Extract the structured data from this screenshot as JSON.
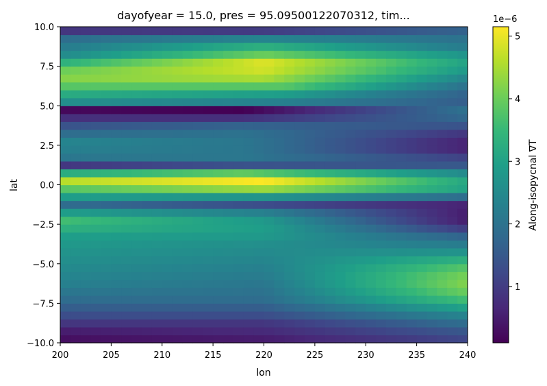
{
  "chart_data": {
    "type": "heatmap",
    "title": "dayofyear = 15.0, pres = 95.09500122070312, tim...",
    "xlabel": "lon",
    "ylabel": "lat",
    "xlim": [
      200,
      240
    ],
    "ylim": [
      -10,
      10
    ],
    "x_ticks": [
      "200",
      "205",
      "210",
      "215",
      "220",
      "225",
      "230",
      "235",
      "240"
    ],
    "y_ticks": [
      "−10.0",
      "−7.5",
      "−5.0",
      "−2.5",
      "0.0",
      "2.5",
      "5.0",
      "7.5",
      "10.0"
    ],
    "x_tick_values": [
      200,
      205,
      210,
      215,
      220,
      225,
      230,
      235,
      240
    ],
    "y_tick_values": [
      -10,
      -7.5,
      -5,
      -2.5,
      0,
      2.5,
      5,
      7.5,
      10
    ],
    "colormap": "viridis",
    "colorbar": {
      "label": "Along-isopycnal ∇T",
      "exponent_label": "1e−6",
      "range": [
        1e-07,
        5.15e-06
      ],
      "ticks": [
        "1",
        "2",
        "3",
        "4",
        "5"
      ],
      "tick_values": [
        1,
        2,
        3,
        4,
        5
      ]
    },
    "grid": false,
    "legend": "none",
    "lon_bins": 40,
    "lat_profile_note": "values in units of 1e-6, rows listed from lat -10 to +10",
    "row_lat_centers": [
      -9.75,
      -9.25,
      -8.75,
      -8.25,
      -7.75,
      -7.25,
      -6.75,
      -6.25,
      -5.75,
      -5.25,
      -4.75,
      -4.25,
      -3.75,
      -3.25,
      -2.75,
      -2.25,
      -1.75,
      -1.25,
      -0.75,
      -0.25,
      0.25,
      0.75,
      1.25,
      1.75,
      2.25,
      2.75,
      3.25,
      3.75,
      4.25,
      4.75,
      5.25,
      5.75,
      6.25,
      6.75,
      7.25,
      7.75,
      8.25,
      8.75,
      9.25,
      9.75
    ],
    "row_west": [
      0.3,
      0.5,
      0.9,
      1.3,
      1.6,
      1.9,
      2.1,
      2.3,
      2.4,
      2.5,
      2.6,
      2.7,
      2.8,
      2.9,
      3.3,
      3.6,
      2.9,
      1.9,
      2.9,
      3.8,
      4.6,
      3.2,
      0.9,
      2.1,
      2.3,
      2.4,
      1.9,
      1.4,
      0.8,
      0.2,
      2.6,
      3.2,
      3.8,
      4.2,
      4.0,
      3.3,
      2.5,
      2.2,
      1.9,
      0.9
    ],
    "row_mid": [
      0.5,
      0.7,
      0.9,
      1.3,
      1.6,
      1.9,
      2.0,
      2.1,
      2.2,
      2.3,
      2.4,
      2.5,
      2.6,
      2.8,
      2.9,
      2.8,
      2.3,
      1.3,
      2.7,
      4.4,
      5.15,
      3.9,
      1.4,
      2.1,
      2.1,
      2.1,
      2.0,
      1.7,
      0.8,
      0.1,
      2.3,
      2.9,
      3.8,
      4.5,
      4.8,
      4.9,
      4.0,
      3.3,
      2.4,
      1.0
    ],
    "row_east": [
      1.2,
      1.5,
      1.9,
      2.4,
      3.0,
      3.6,
      4.0,
      4.2,
      4.1,
      3.8,
      3.3,
      2.7,
      2.2,
      1.7,
      1.0,
      0.5,
      0.5,
      0.6,
      1.9,
      3.0,
      3.1,
      2.5,
      1.5,
      1.1,
      0.6,
      0.6,
      0.9,
      1.4,
      1.8,
      2.0,
      1.6,
      1.7,
      2.0,
      2.4,
      2.8,
      3.0,
      2.7,
      2.2,
      2.0,
      1.7
    ],
    "row_mid_center_lon": [
      220,
      220,
      220,
      220,
      220,
      220,
      220,
      220,
      220,
      220,
      220,
      220,
      220,
      220,
      220,
      220,
      220,
      220,
      220,
      220,
      220,
      218,
      218,
      218,
      218,
      218,
      218,
      218,
      218,
      218,
      222,
      222,
      222,
      220,
      220,
      220,
      220,
      220,
      220,
      220
    ]
  }
}
